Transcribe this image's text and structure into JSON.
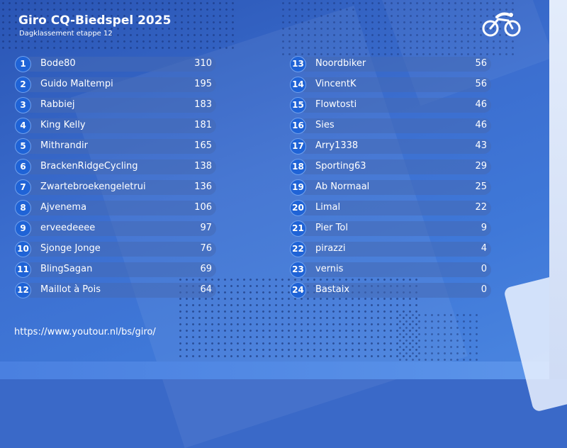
{
  "header": {
    "title": "Giro CQ-Biedspel 2025",
    "subtitle": "Dagklassement etappe 12",
    "logo_icon": "cyclist-logo-icon"
  },
  "standings_left": [
    {
      "rank": "1",
      "name": "Bode80",
      "score": "310"
    },
    {
      "rank": "2",
      "name": "Guido Maltempi",
      "score": "195"
    },
    {
      "rank": "3",
      "name": "Rabbiej",
      "score": "183"
    },
    {
      "rank": "4",
      "name": "King Kelly",
      "score": "181"
    },
    {
      "rank": "5",
      "name": "Mithrandir",
      "score": "165"
    },
    {
      "rank": "6",
      "name": "BrackenRidgeCycling",
      "score": "138"
    },
    {
      "rank": "7",
      "name": "Zwartebroekengeletrui",
      "score": "136"
    },
    {
      "rank": "8",
      "name": "Ajvenema",
      "score": "106"
    },
    {
      "rank": "9",
      "name": "erveedeeee",
      "score": "97"
    },
    {
      "rank": "10",
      "name": "Sjonge Jonge",
      "score": "76"
    },
    {
      "rank": "11",
      "name": "BlingSagan",
      "score": "69"
    },
    {
      "rank": "12",
      "name": "Maillot à Pois",
      "score": "64"
    }
  ],
  "standings_right": [
    {
      "rank": "13",
      "name": "Noordbiker",
      "score": "56"
    },
    {
      "rank": "14",
      "name": "VincentK",
      "score": "56"
    },
    {
      "rank": "15",
      "name": "Flowtosti",
      "score": "46"
    },
    {
      "rank": "16",
      "name": "Sies",
      "score": "46"
    },
    {
      "rank": "17",
      "name": "Arry1338",
      "score": "43"
    },
    {
      "rank": "18",
      "name": "Sporting63",
      "score": "29"
    },
    {
      "rank": "19",
      "name": "Ab Normaal",
      "score": "25"
    },
    {
      "rank": "20",
      "name": "Limal",
      "score": "22"
    },
    {
      "rank": "21",
      "name": "Pier Tol",
      "score": "9"
    },
    {
      "rank": "22",
      "name": "pirazzi",
      "score": "4"
    },
    {
      "rank": "23",
      "name": "vernis",
      "score": "0"
    },
    {
      "rank": "24",
      "name": "Bastaix",
      "score": "0"
    }
  ],
  "footer": {
    "url": "https://www.youtour.nl/bs/giro/"
  },
  "colors": {
    "background": "#3a69c8",
    "badge": "#1f63d6",
    "text": "#ffffff"
  }
}
